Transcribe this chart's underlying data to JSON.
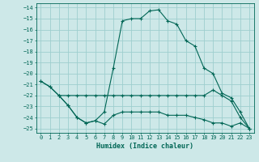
{
  "xlabel": "Humidex (Indice chaleur)",
  "bg_color": "#cde8e8",
  "grid_color": "#9ecece",
  "line_color": "#006655",
  "ylim": [
    -25.4,
    -13.6
  ],
  "xlim": [
    -0.5,
    23.5
  ],
  "yticks": [
    -14,
    -15,
    -16,
    -17,
    -18,
    -19,
    -20,
    -21,
    -22,
    -23,
    -24,
    -25
  ],
  "xticks": [
    0,
    1,
    2,
    3,
    4,
    5,
    6,
    7,
    8,
    9,
    10,
    11,
    12,
    13,
    14,
    15,
    16,
    17,
    18,
    19,
    20,
    21,
    22,
    23
  ],
  "line1_x": [
    0,
    1,
    2,
    3,
    4,
    5,
    6,
    7,
    8,
    9,
    10,
    11,
    12,
    13,
    14,
    15,
    16,
    17,
    18,
    19,
    20,
    21,
    22,
    23
  ],
  "line1_y": [
    -20.7,
    -21.2,
    -22.0,
    -22.9,
    -24.0,
    -24.5,
    -24.3,
    -23.5,
    -19.5,
    -15.2,
    -15.0,
    -15.0,
    -14.3,
    -14.2,
    -15.2,
    -15.5,
    -17.0,
    -17.5,
    -19.5,
    -20.0,
    -21.8,
    -22.2,
    -23.5,
    -25.0
  ],
  "line2_x": [
    0,
    1,
    2,
    3,
    4,
    5,
    6,
    7,
    8,
    9,
    10,
    11,
    12,
    13,
    14,
    15,
    16,
    17,
    18,
    19,
    20,
    21,
    22,
    23
  ],
  "line2_y": [
    -20.7,
    -21.2,
    -22.0,
    -22.0,
    -22.0,
    -22.0,
    -22.0,
    -22.0,
    -22.0,
    -22.0,
    -22.0,
    -22.0,
    -22.0,
    -22.0,
    -22.0,
    -22.0,
    -22.0,
    -22.0,
    -22.0,
    -21.5,
    -22.0,
    -22.5,
    -24.0,
    -25.0
  ],
  "line3_x": [
    2,
    3,
    4,
    5,
    6,
    7,
    8,
    9,
    10,
    11,
    12,
    13,
    14,
    15,
    16,
    17,
    18,
    19,
    20,
    21,
    22,
    23
  ],
  "line3_y": [
    -22.0,
    -22.9,
    -24.0,
    -24.5,
    -24.3,
    -24.6,
    -23.8,
    -23.5,
    -23.5,
    -23.5,
    -23.5,
    -23.5,
    -23.8,
    -23.8,
    -23.8,
    -24.0,
    -24.2,
    -24.5,
    -24.5,
    -24.8,
    -24.5,
    -25.0
  ]
}
